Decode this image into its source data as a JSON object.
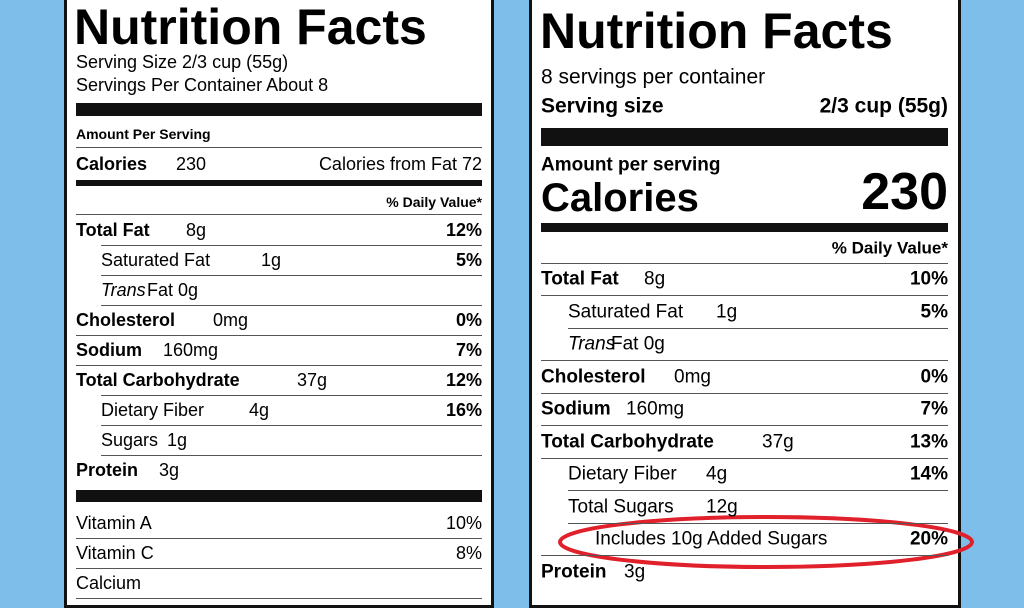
{
  "left": {
    "title": "Nutrition Facts",
    "serving_size": "Serving Size 2/3 cup (55g)",
    "servings": "Servings Per Container About 8",
    "amount_per_serving": "Amount Per Serving",
    "calories": {
      "label": "Calories",
      "value": "230",
      "from_fat": "Calories from Fat 72"
    },
    "daily_value_header": "% Daily Value*",
    "nutrients": [
      {
        "label": "Total Fat",
        "amount": "8g",
        "dv": "12%"
      },
      {
        "label": "Saturated Fat",
        "amount": "1g",
        "dv": "5%"
      },
      {
        "label": "Trans",
        "amount": "Fat 0g"
      },
      {
        "label": "Cholesterol",
        "amount": "0mg",
        "dv": "0%"
      },
      {
        "label": "Sodium",
        "amount": "160mg",
        "dv": "7%"
      },
      {
        "label": "Total Carbohydrate",
        "amount": "37g",
        "dv": "12%"
      },
      {
        "label": "Dietary Fiber",
        "amount": "4g",
        "dv": "16%"
      },
      {
        "label": "Sugars",
        "amount": "1g"
      },
      {
        "label": "Protein",
        "amount": "3g"
      }
    ],
    "vitamins": [
      {
        "label": "Vitamin A",
        "dv": "10%"
      },
      {
        "label": "Vitamin C",
        "dv": "8%"
      },
      {
        "label": "Calcium"
      }
    ]
  },
  "right": {
    "title": "Nutrition Facts",
    "servings": "8 servings per container",
    "serving_size": {
      "label": "Serving size",
      "value": "2/3 cup (55g)"
    },
    "amount_per_serving": "Amount per serving",
    "calories": {
      "label": "Calories",
      "value": "230"
    },
    "daily_value_header": "% Daily Value*",
    "nutrients": [
      {
        "label": "Total Fat",
        "amount": "8g",
        "dv": "10%"
      },
      {
        "label": "Saturated Fat",
        "amount": "1g",
        "dv": "5%"
      },
      {
        "label": "Trans",
        "amount": "Fat 0g"
      },
      {
        "label": "Cholesterol",
        "amount": "0mg",
        "dv": "0%"
      },
      {
        "label": "Sodium",
        "amount": "160mg",
        "dv": "7%"
      },
      {
        "label": "Total Carbohydrate",
        "amount": "37g",
        "dv": "13%"
      },
      {
        "label": "Dietary Fiber",
        "amount": "4g",
        "dv": "14%"
      },
      {
        "label": "Total Sugars",
        "amount": "12g"
      },
      {
        "label": "Includes 10g Added Sugars",
        "dv": "20%"
      },
      {
        "label": "Protein",
        "amount": "3g"
      }
    ]
  }
}
